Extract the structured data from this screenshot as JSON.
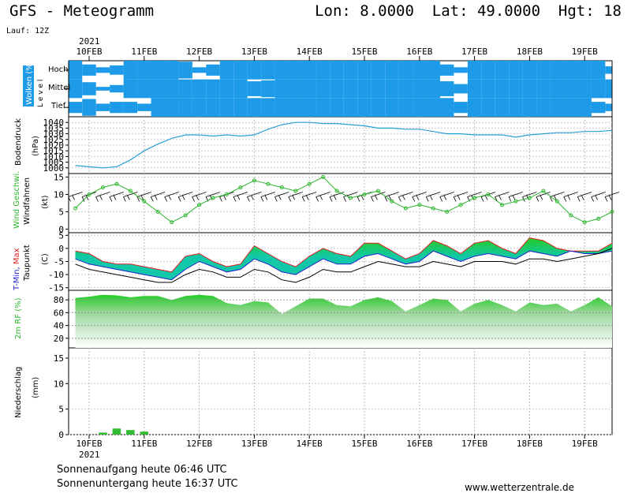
{
  "header": {
    "title": "GFS - Meteogramm",
    "coords": "Lon: 8.0000  Lat: 49.0000  Hgt: 18",
    "run": "Lauf: 12Z"
  },
  "dates": {
    "year_top": "2021",
    "year_bottom": "2021",
    "labels": [
      "10FEB",
      "11FEB",
      "12FEB",
      "13FEB",
      "14FEB",
      "15FEB",
      "16FEB",
      "17FEB",
      "18FEB",
      "19FEB"
    ]
  },
  "footer": {
    "sunrise": "Sonnenaufgang heute 06:46 UTC",
    "sunset": "Sonnenuntergang heute 16:37 UTC",
    "site": "www.wetterzentrale.de"
  },
  "colors": {
    "cloud_blue": "#1e9be8",
    "pressure_line": "#2a9fd6",
    "wind_green": "#2bb52b",
    "tmax_red": "#e02020",
    "tmin_blue": "#2020d0",
    "temp_fill": "#12c8a8",
    "temp_fill_top": "#22cc22",
    "rh_green": "#22cc22",
    "precip_green": "#33bb33"
  },
  "panels": {
    "clouds": {
      "label": "Wolken (%)",
      "level_label": "L e v e l",
      "levels": [
        "Hoch",
        "Mittel",
        "Tief"
      ]
    },
    "pressure": {
      "label1": "Bodendruck",
      "label2": "(hPa)"
    },
    "wind": {
      "label_speed": "Wind Geschwi.",
      "label_barbs": "Windfahnen",
      "unit": "(kt)"
    },
    "temp": {
      "label_tmin": "T-Min,",
      "label_max": "Max",
      "label_dew": "Taupunkt",
      "unit": "(C)"
    },
    "rh": {
      "label": "2m RF (%)"
    },
    "precip": {
      "label1": "Niederschlag",
      "label2": "(mm)"
    }
  },
  "chart_data": [
    {
      "type": "heatmap",
      "name": "clouds",
      "x_start": "2021-02-09T18Z",
      "x_step_hours": 6,
      "levels": [
        "Hoch",
        "Mittel",
        "Tief"
      ],
      "cover_by_level": {
        "Hoch": [
          100,
          60,
          30,
          50,
          100,
          100,
          100,
          100,
          90,
          30,
          60,
          100,
          100,
          100,
          100,
          100,
          100,
          100,
          100,
          100,
          100,
          100,
          100,
          100,
          100,
          100,
          100,
          60,
          30,
          100,
          100,
          100,
          100,
          100,
          100,
          100,
          100,
          100,
          100,
          40
        ],
        "Mittel": [
          100,
          70,
          20,
          40,
          100,
          100,
          100,
          100,
          100,
          100,
          100,
          100,
          100,
          80,
          90,
          100,
          100,
          100,
          100,
          100,
          100,
          100,
          100,
          100,
          100,
          100,
          100,
          80,
          50,
          100,
          100,
          100,
          100,
          100,
          100,
          100,
          100,
          100,
          100,
          100
        ],
        "Tief": [
          60,
          90,
          40,
          60,
          60,
          40,
          100,
          100,
          100,
          100,
          100,
          100,
          100,
          100,
          100,
          100,
          100,
          100,
          100,
          100,
          100,
          100,
          100,
          100,
          100,
          100,
          100,
          100,
          60,
          100,
          100,
          100,
          100,
          100,
          100,
          100,
          100,
          100,
          60,
          40
        ]
      }
    },
    {
      "type": "line",
      "name": "pressure",
      "ylabel": "(hPa)",
      "ylim": [
        995,
        1045
      ],
      "yticks": [
        1000,
        1005,
        1010,
        1015,
        1020,
        1025,
        1030,
        1035,
        1040
      ],
      "x_start": "2021-02-09T18Z",
      "x_step_hours": 6,
      "values": [
        1002,
        1001,
        1000,
        1001,
        1007,
        1015,
        1021,
        1026,
        1029,
        1029,
        1028,
        1029,
        1028,
        1029,
        1034,
        1038,
        1040,
        1040,
        1039,
        1039,
        1038,
        1037,
        1035,
        1035,
        1034,
        1034,
        1032,
        1030,
        1030,
        1029,
        1029,
        1029,
        1027,
        1029,
        1030,
        1031,
        1031,
        1032,
        1032,
        1033
      ]
    },
    {
      "type": "line",
      "name": "wind",
      "ylabel": "(kt)",
      "ylim": [
        -1,
        16
      ],
      "yticks": [
        0,
        5,
        10,
        15
      ],
      "x_start": "2021-02-09T18Z",
      "x_step_hours": 6,
      "values": [
        6,
        10,
        12,
        13,
        11,
        8,
        5,
        2,
        4,
        7,
        9,
        10,
        12,
        14,
        13,
        12,
        11,
        13,
        15,
        11,
        9,
        10,
        11,
        8,
        6,
        7,
        6,
        5,
        7,
        9,
        10,
        7,
        8,
        9,
        11,
        8,
        4,
        2,
        3,
        5
      ],
      "barbs": "wind barbs along the 9-12 kt band"
    },
    {
      "type": "area",
      "name": "temperature",
      "ylabel": "(C)",
      "ylim": [
        -16,
        6
      ],
      "yticks": [
        -15,
        -10,
        -5,
        0,
        5
      ],
      "x_start": "2021-02-09T18Z",
      "x_step_hours": 6,
      "series": [
        {
          "name": "T-Min",
          "values": [
            -4,
            -6,
            -7,
            -8,
            -9,
            -10,
            -11,
            -12,
            -8,
            -5,
            -7,
            -9,
            -8,
            -4,
            -6,
            -9,
            -10,
            -7,
            -4,
            -6,
            -6,
            -3,
            -2,
            -4,
            -6,
            -5,
            -1,
            -3,
            -5,
            -3,
            -2,
            -3,
            -4,
            -1,
            -2,
            -3,
            -1,
            -2,
            -2,
            -1
          ]
        },
        {
          "name": "Max",
          "values": [
            -1,
            -2,
            -5,
            -6,
            -6,
            -7,
            -8,
            -9,
            -3,
            -2,
            -5,
            -7,
            -6,
            1,
            -2,
            -5,
            -7,
            -3,
            0,
            -2,
            -3,
            2,
            2,
            -1,
            -4,
            -2,
            3,
            1,
            -2,
            2,
            3,
            0,
            -2,
            4,
            3,
            0,
            -1,
            -1,
            -1,
            2
          ]
        },
        {
          "name": "Taupunkt",
          "values": [
            -6,
            -8,
            -9,
            -10,
            -11,
            -12,
            -13,
            -13,
            -10,
            -8,
            -9,
            -11,
            -11,
            -8,
            -9,
            -12,
            -13,
            -11,
            -8,
            -9,
            -9,
            -7,
            -5,
            -6,
            -7,
            -7,
            -5,
            -6,
            -7,
            -5,
            -5,
            -5,
            -6,
            -4,
            -4,
            -5,
            -4,
            -3,
            -2,
            0
          ]
        }
      ]
    },
    {
      "type": "area",
      "name": "relative_humidity",
      "ylabel": "2m RF (%)",
      "ylim": [
        5,
        95
      ],
      "yticks": [
        20,
        40,
        60,
        80
      ],
      "x_start": "2021-02-09T18Z",
      "x_step_hours": 6,
      "values": [
        83,
        85,
        88,
        87,
        84,
        86,
        86,
        80,
        86,
        88,
        86,
        75,
        72,
        78,
        76,
        58,
        70,
        82,
        82,
        72,
        70,
        80,
        84,
        78,
        62,
        72,
        82,
        80,
        62,
        74,
        80,
        72,
        62,
        76,
        72,
        74,
        62,
        72,
        84,
        70
      ]
    },
    {
      "type": "bar",
      "name": "precipitation",
      "ylabel": "(mm)",
      "ylim": [
        0,
        17
      ],
      "yticks": [
        0,
        5,
        10,
        15
      ],
      "x_start": "2021-02-09T18Z",
      "x_step_hours": 6,
      "values": [
        0,
        0,
        0.4,
        1.2,
        0.9,
        0.6,
        0,
        0,
        0,
        0,
        0,
        0,
        0,
        0,
        0,
        0,
        0,
        0,
        0,
        0,
        0,
        0,
        0,
        0,
        0,
        0,
        0,
        0,
        0,
        0,
        0,
        0,
        0,
        0,
        0,
        0,
        0,
        0,
        0,
        0
      ]
    }
  ]
}
